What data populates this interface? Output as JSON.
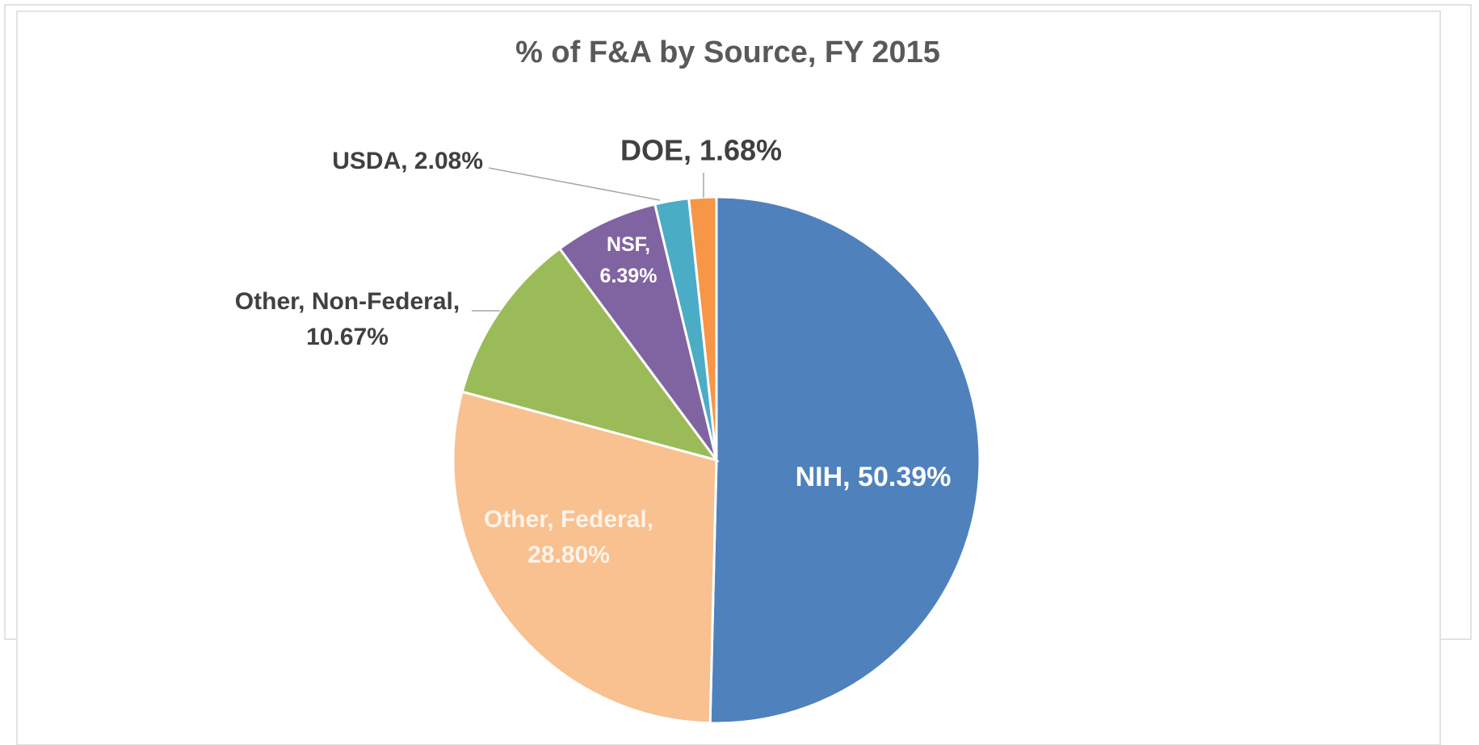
{
  "chart_data": {
    "type": "pie",
    "title": "% of F&A by Source, FY 2015",
    "categories": [
      "NIH",
      "Other, Federal",
      "Other, Non-Federal",
      "NSF",
      "USDA",
      "DOE"
    ],
    "values": [
      50.39,
      28.8,
      10.67,
      6.39,
      2.08,
      1.68
    ],
    "value_labels": [
      "NIH, 50.39%",
      "Other, Federal,\n28.80%",
      "Other, Non-Federal,\n10.67%",
      "NSF,\n6.39%",
      "USDA, 2.08%",
      "DOE, 1.68%"
    ],
    "colors": [
      "#4f81bd",
      "#f9c090",
      "#9bbb59",
      "#8064a2",
      "#4bacc6",
      "#f79646"
    ]
  }
}
